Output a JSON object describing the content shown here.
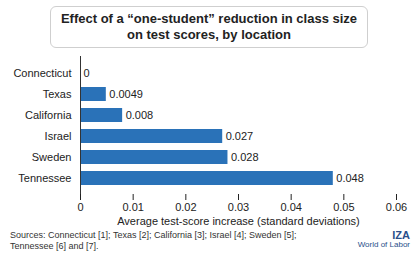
{
  "chart_data": {
    "type": "bar",
    "orientation": "horizontal",
    "title": "Effect of a “one-student” reduction in class size on test scores, by location",
    "categories": [
      "Connecticut",
      "Texas",
      "California",
      "Israel",
      "Sweden",
      "Tennessee"
    ],
    "values": [
      0,
      0.0049,
      0.008,
      0.027,
      0.028,
      0.048
    ],
    "color": "#2a72b8",
    "xlabel": "Average test-score increase (standard deviations)",
    "xlim": [
      0,
      0.06
    ],
    "xticks": [
      0,
      0.01,
      0.02,
      0.03,
      0.04,
      0.05,
      0.06
    ],
    "grid": false,
    "data_labels": true,
    "source": "Sources: Connecticut [1]; Texas [2]; California [3]; Israel [4]; Sweden [5]; Tennessee [6] and [7].",
    "annotations": [
      "IZA",
      "World of Labor"
    ]
  }
}
